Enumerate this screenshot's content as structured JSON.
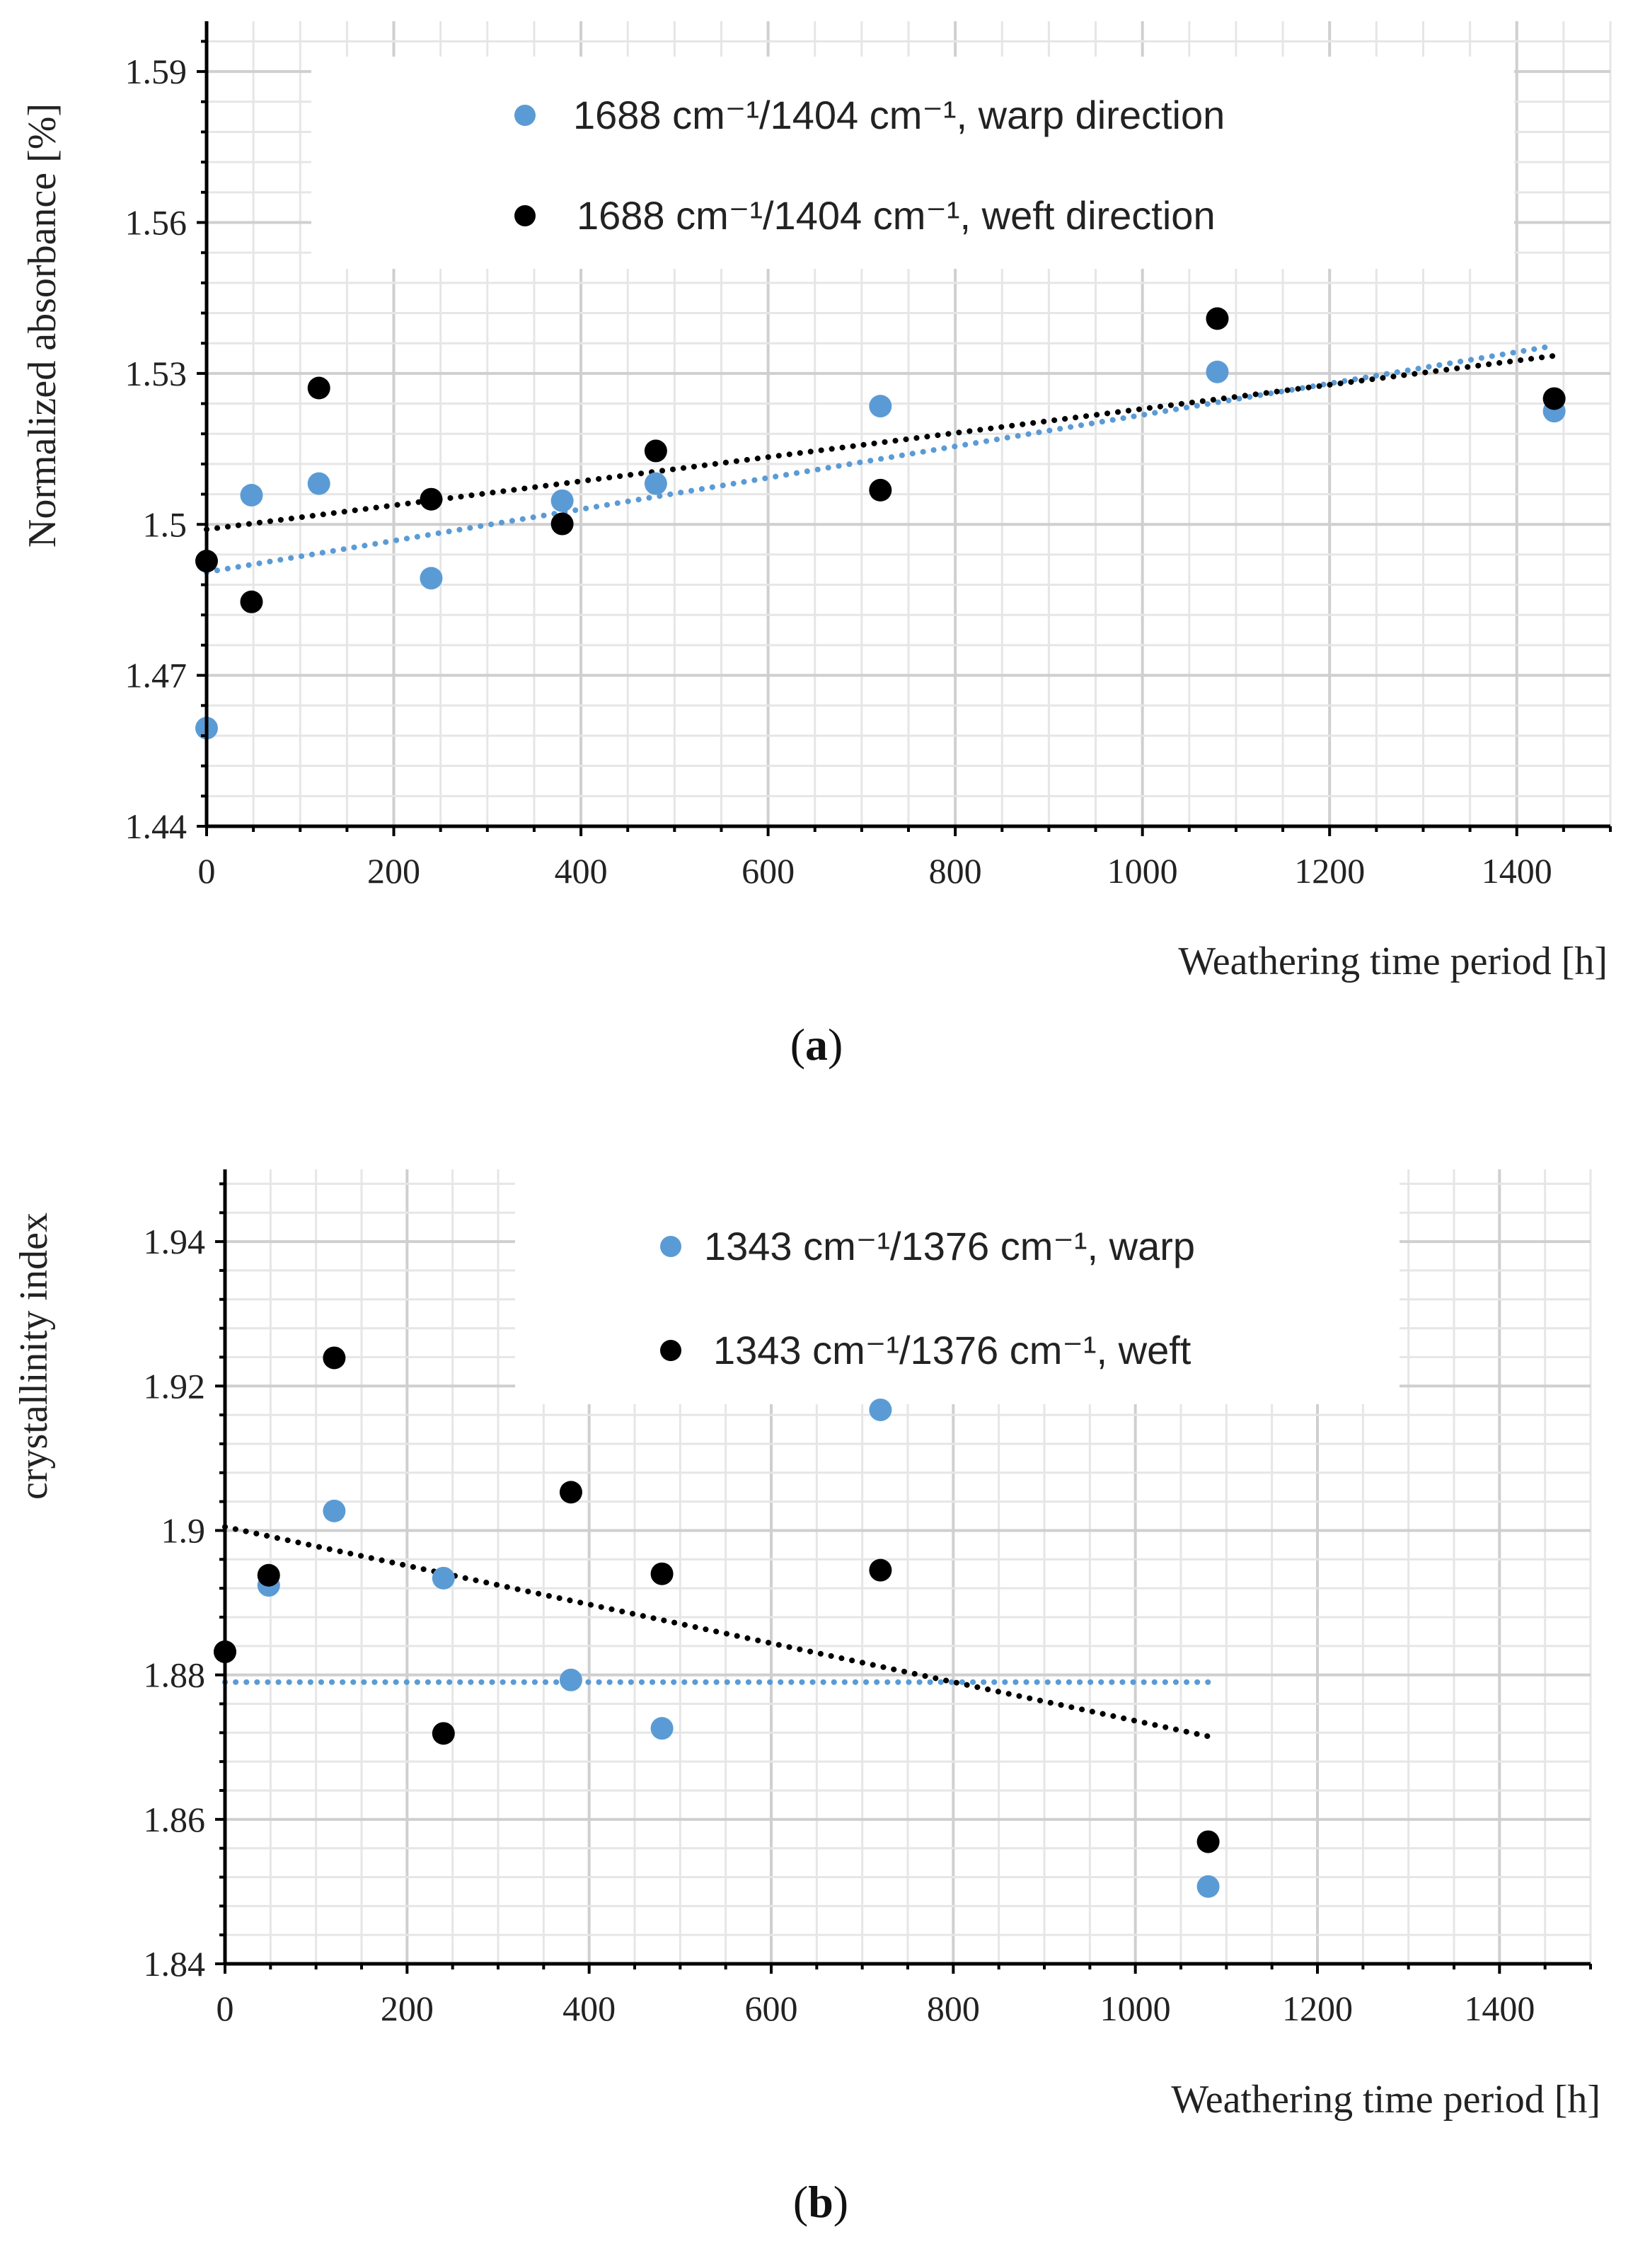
{
  "colors": {
    "warp": "#5b9bd5",
    "weft": "#000000",
    "grid_major": "#cfcfcf",
    "grid_minor": "#e6e6e6",
    "axis": "#000000"
  },
  "chart_data": [
    {
      "type": "scatter",
      "caption_label": "a",
      "caption": "(a)",
      "xlabel": "Weathering time period [h]",
      "ylabel": "Normalized absorbance [%]",
      "xlim": [
        0,
        1500
      ],
      "ylim": [
        1.44,
        1.6
      ],
      "xticks": [
        0,
        200,
        400,
        600,
        800,
        1000,
        1200,
        1400
      ],
      "xtick_labels": [
        "0",
        "200",
        "400",
        "600",
        "800",
        "1000",
        "1200",
        "1400"
      ],
      "yticks": [
        1.44,
        1.47,
        1.5,
        1.53,
        1.56,
        1.59
      ],
      "ytick_labels": [
        "1.44",
        "1.47",
        "1.5",
        "1.53",
        "1.56",
        "1.59"
      ],
      "legend_position": "top",
      "series": [
        {
          "name": "1688 cm⁻¹/1404 cm⁻¹, warp direction",
          "color_key": "warp",
          "x": [
            0,
            48,
            120,
            240,
            380,
            480,
            720,
            1080,
            1440
          ],
          "y": [
            1.4595,
            1.5058,
            1.5081,
            1.4893,
            1.5047,
            1.5081,
            1.5235,
            1.5303,
            1.5225
          ],
          "trendline": {
            "type": "linear",
            "x": [
              0,
              1440
            ],
            "y": [
              1.4905,
              1.5355
            ]
          }
        },
        {
          "name": "1688 cm⁻¹/1404 cm⁻¹, weft direction",
          "color_key": "weft",
          "x": [
            0,
            48,
            120,
            240,
            380,
            480,
            720,
            1080,
            1440
          ],
          "y": [
            1.4927,
            1.4846,
            1.5271,
            1.505,
            1.5001,
            1.5146,
            1.5068,
            1.5409,
            1.525
          ],
          "trendline": {
            "type": "linear",
            "x": [
              0,
              1440
            ],
            "y": [
              1.499,
              1.5335
            ]
          }
        }
      ]
    },
    {
      "type": "scatter",
      "caption_label": "b",
      "caption": "(b)",
      "xlabel": "Weathering time period [h]",
      "ylabel": "crystallinity index",
      "xlim": [
        0,
        1500
      ],
      "ylim": [
        1.84,
        1.95
      ],
      "xticks": [
        0,
        200,
        400,
        600,
        800,
        1000,
        1200,
        1400
      ],
      "xtick_labels": [
        "0",
        "200",
        "400",
        "600",
        "800",
        "1000",
        "1200",
        "1400"
      ],
      "yticks": [
        1.84,
        1.86,
        1.88,
        1.9,
        1.92,
        1.94
      ],
      "ytick_labels": [
        "1.84",
        "1.86",
        "1.88",
        "1.9",
        "1.92",
        "1.94"
      ],
      "legend_position": "top",
      "series": [
        {
          "name": "1343 cm⁻¹/1376 cm⁻¹, warp",
          "color_key": "warp",
          "x": [
            0,
            48,
            120,
            240,
            380,
            480,
            720,
            1080
          ],
          "y": [
            1.8832,
            1.8924,
            1.9027,
            1.8934,
            1.8793,
            1.8726,
            1.9167,
            1.8507
          ],
          "trendline": {
            "type": "linear",
            "x": [
              0,
              1080
            ],
            "y": [
              1.879,
              1.879
            ]
          }
        },
        {
          "name": "1343 cm⁻¹/1376 cm⁻¹, weft",
          "color_key": "weft",
          "x": [
            0,
            48,
            120,
            240,
            380,
            480,
            720,
            1080
          ],
          "y": [
            1.8832,
            1.8938,
            1.9239,
            1.8719,
            1.9053,
            1.894,
            1.8945,
            1.8569
          ],
          "trendline": {
            "type": "linear",
            "x": [
              0,
              1080
            ],
            "y": [
              1.9005,
              1.8715
            ]
          }
        }
      ]
    }
  ]
}
